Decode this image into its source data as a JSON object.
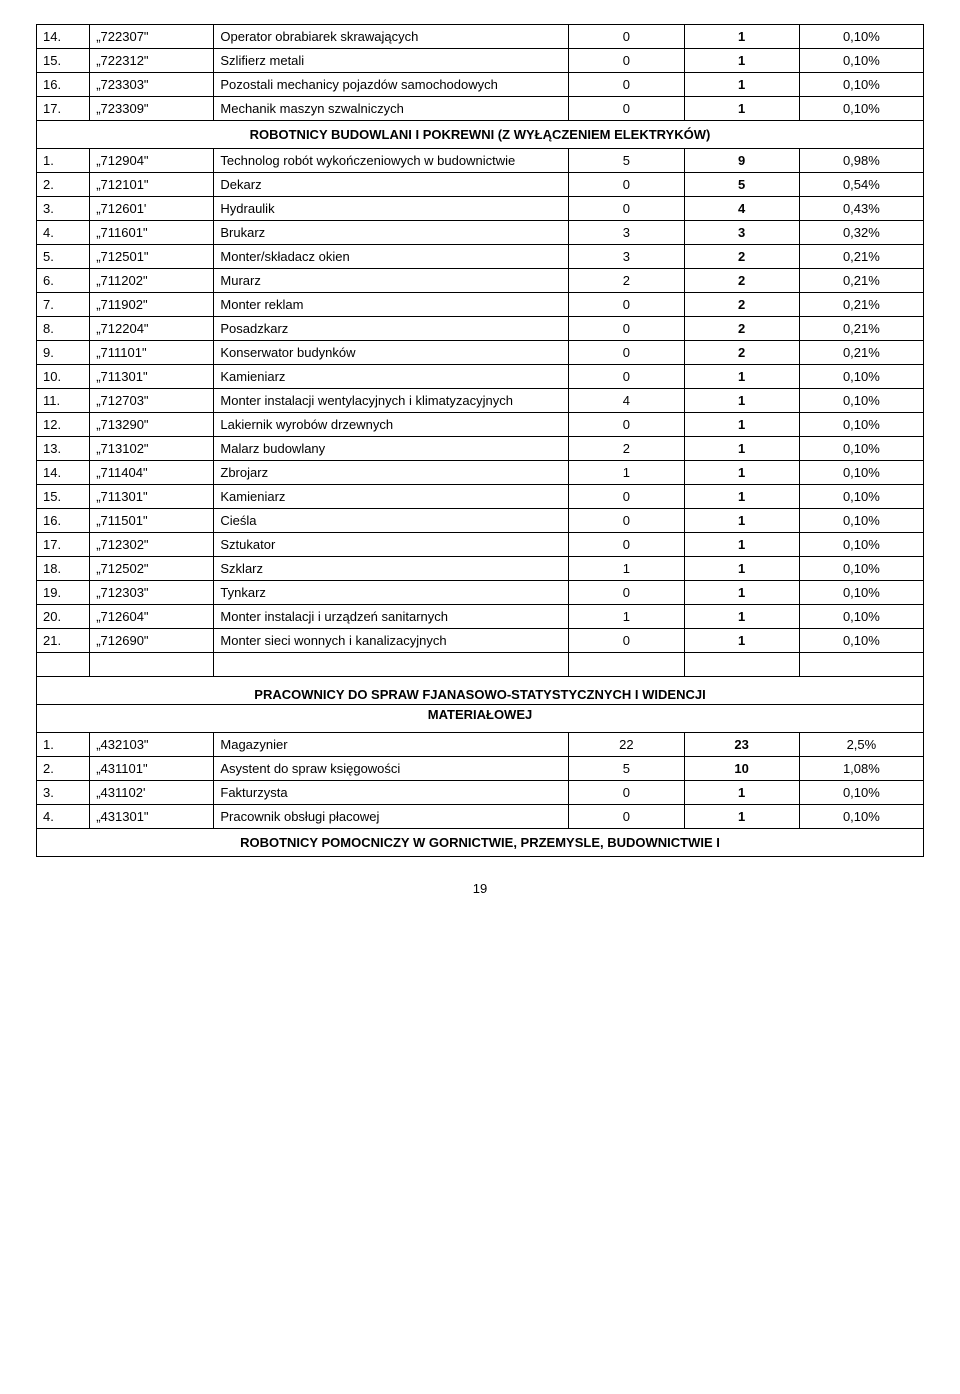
{
  "rows_top": [
    {
      "n": "14.",
      "code": "„722307\"",
      "name": "Operator obrabiarek skrawających",
      "v1": "0",
      "v2": "1",
      "v3": "0,10%"
    },
    {
      "n": "15.",
      "code": "„722312\"",
      "name": "Szlifierz metali",
      "v1": "0",
      "v2": "1",
      "v3": "0,10%"
    },
    {
      "n": "16.",
      "code": "„723303\"",
      "name": "Pozostali mechanicy pojazdów samochodowych",
      "v1": "0",
      "v2": "1",
      "v3": "0,10%"
    },
    {
      "n": "17.",
      "code": "„723309\"",
      "name": "Mechanik maszyn szwalniczych",
      "v1": "0",
      "v2": "1",
      "v3": "0,10%"
    }
  ],
  "section1": "ROBOTNICY BUDOWLANI I POKREWNI (Z WYŁĄCZENIEM ELEKTRYKÓW)",
  "rows_mid": [
    {
      "n": "1.",
      "code": "„712904\"",
      "name": "Technolog robót wykończeniowych w budownictwie",
      "v1": "5",
      "v2": "9",
      "v3": "0,98%"
    },
    {
      "n": "2.",
      "code": "„712101\"",
      "name": "Dekarz",
      "v1": "0",
      "v2": "5",
      "v3": "0,54%"
    },
    {
      "n": "3.",
      "code": "„712601'",
      "name": "Hydraulik",
      "v1": "0",
      "v2": "4",
      "v3": "0,43%"
    },
    {
      "n": "4.",
      "code": "„711601\"",
      "name": "Brukarz",
      "v1": "3",
      "v2": "3",
      "v3": "0,32%"
    },
    {
      "n": "5.",
      "code": "„712501\"",
      "name": "Monter/składacz okien",
      "v1": "3",
      "v2": "2",
      "v3": "0,21%"
    },
    {
      "n": "6.",
      "code": "„711202\"",
      "name": "Murarz",
      "v1": "2",
      "v2": "2",
      "v3": "0,21%"
    },
    {
      "n": "7.",
      "code": "„711902\"",
      "name": "Monter reklam",
      "v1": "0",
      "v2": "2",
      "v3": "0,21%"
    },
    {
      "n": "8.",
      "code": "„712204\"",
      "name": "Posadzkarz",
      "v1": "0",
      "v2": "2",
      "v3": "0,21%"
    },
    {
      "n": "9.",
      "code": "„711101\"",
      "name": "Konserwator budynków",
      "v1": "0",
      "v2": "2",
      "v3": "0,21%"
    },
    {
      "n": "10.",
      "code": "„711301\"",
      "name": "Kamieniarz",
      "v1": "0",
      "v2": "1",
      "v3": "0,10%"
    },
    {
      "n": "11.",
      "code": "„712703\"",
      "name": "Monter instalacji wentylacyjnych i klimatyzacyjnych",
      "v1": "4",
      "v2": "1",
      "v3": "0,10%"
    },
    {
      "n": "12.",
      "code": "„713290\"",
      "name": "Lakiernik wyrobów drzewnych",
      "v1": "0",
      "v2": "1",
      "v3": "0,10%"
    },
    {
      "n": "13.",
      "code": "„713102\"",
      "name": "Malarz budowlany",
      "v1": "2",
      "v2": "1",
      "v3": "0,10%"
    },
    {
      "n": "14.",
      "code": "„711404\"",
      "name": "Zbrojarz",
      "v1": "1",
      "v2": "1",
      "v3": "0,10%"
    },
    {
      "n": "15.",
      "code": "„711301\"",
      "name": "Kamieniarz",
      "v1": "0",
      "v2": "1",
      "v3": "0,10%"
    },
    {
      "n": "16.",
      "code": "„711501\"",
      "name": "Cieśla",
      "v1": "0",
      "v2": "1",
      "v3": "0,10%"
    },
    {
      "n": "17.",
      "code": "„712302\"",
      "name": "Sztukator",
      "v1": "0",
      "v2": "1",
      "v3": "0,10%"
    },
    {
      "n": "18.",
      "code": "„712502\"",
      "name": "Szklarz",
      "v1": "1",
      "v2": "1",
      "v3": "0,10%"
    },
    {
      "n": "19.",
      "code": "„712303\"",
      "name": "Tynkarz",
      "v1": "0",
      "v2": "1",
      "v3": "0,10%"
    },
    {
      "n": "20.",
      "code": "„712604\"",
      "name": "Monter instalacji i urządzeń sanitarnych",
      "v1": "1",
      "v2": "1",
      "v3": "0,10%"
    },
    {
      "n": "21.",
      "code": "„712690\"",
      "name": "Monter sieci wonnych i kanalizacyjnych",
      "v1": "0",
      "v2": "1",
      "v3": "0,10%"
    }
  ],
  "section2_line1": "PRACOWNICY DO SPRAW FJANASOWO-STATYSTYCZNYCH I WIDENCJI",
  "section2_line2": "MATERIAŁOWEJ",
  "rows_bot": [
    {
      "n": "1.",
      "code": "„432103\"",
      "name": "Magazynier",
      "v1": "22",
      "v2": "23",
      "v3": "2,5%"
    },
    {
      "n": "2.",
      "code": "„431101\"",
      "name": "Asystent do spraw księgowości",
      "v1": "5",
      "v2": "10",
      "v3": "1,08%"
    },
    {
      "n": "3.",
      "code": "„431102'",
      "name": "Fakturzysta",
      "v1": "0",
      "v2": "1",
      "v3": "0,10%"
    },
    {
      "n": "4.",
      "code": "„431301\"",
      "name": "Pracownik obsługi płacowej",
      "v1": "0",
      "v2": "1",
      "v3": "0,10%"
    }
  ],
  "section3": "ROBOTNICY POMOCNICZY W GORNICTWIE, PRZEMYSLE, BUDOWNICTWIE I",
  "page_number": "19"
}
